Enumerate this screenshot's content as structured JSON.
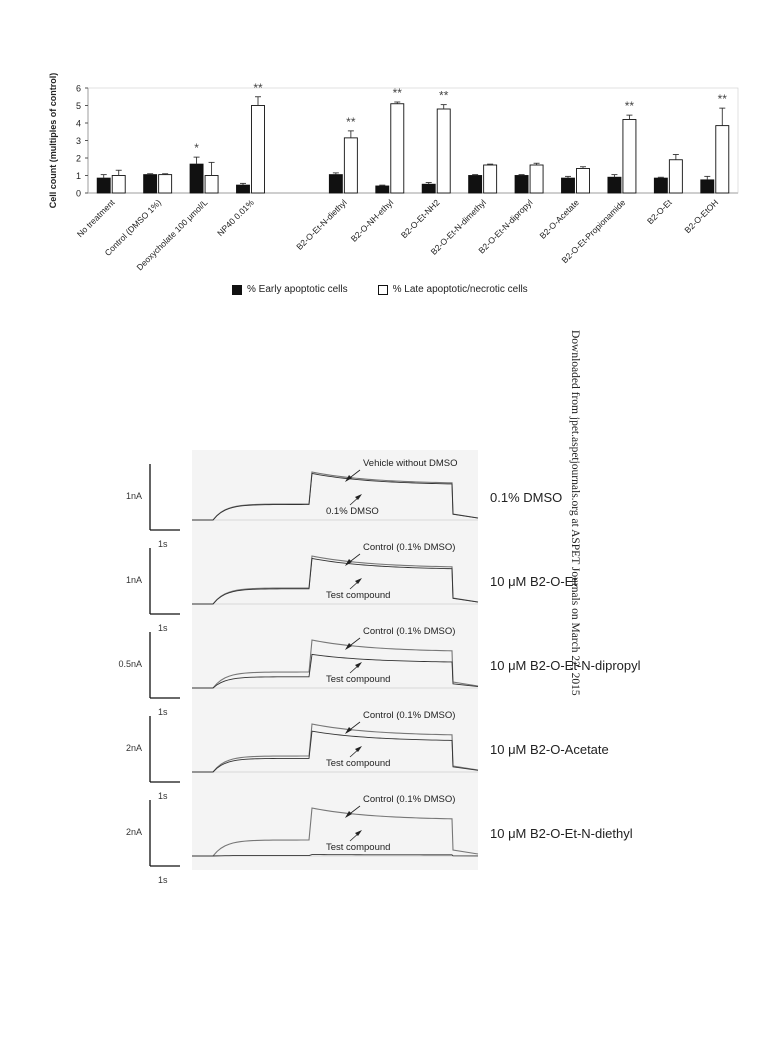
{
  "chart_data": {
    "type": "bar",
    "ylabel": "Cell count (multiples of control)",
    "ylim": [
      0,
      6
    ],
    "yticks": [
      0,
      1,
      2,
      3,
      4,
      5,
      6
    ],
    "grid": false,
    "legend_position": "bottom",
    "categories": [
      "No treatment",
      "Control (DMSO 1%)",
      "Deoxycholate 100 μmol/L",
      "NP40 0.01%",
      "",
      "B2-O-Et-N-diethyl",
      "B2-O-NH-ethyl",
      "B2-O-Et-NH2",
      "B2-O-Et-N-dimethyl",
      "B2-O-Et-N-dipropyl",
      "B2-O-Acetate",
      "B2-O-Et-Propionamide",
      "B2-O-Et",
      "B2-O-EtOH"
    ],
    "series": [
      {
        "name": "% Early apoptotic cells",
        "color": "#111111",
        "values": [
          0.85,
          1.05,
          1.65,
          0.45,
          null,
          1.05,
          0.4,
          0.5,
          1.0,
          1.0,
          0.85,
          0.9,
          0.85,
          0.75
        ],
        "errors": [
          0.2,
          0.05,
          0.4,
          0.1,
          null,
          0.1,
          0.05,
          0.1,
          0.05,
          0.05,
          0.1,
          0.15,
          0.05,
          0.2
        ]
      },
      {
        "name": "% Late apoptotic/necrotic cells",
        "color": "#ffffff",
        "values": [
          1.0,
          1.05,
          1.0,
          5.0,
          null,
          3.15,
          5.1,
          4.8,
          1.6,
          1.6,
          1.4,
          4.2,
          1.9,
          3.85
        ],
        "errors": [
          0.3,
          0.05,
          0.75,
          0.5,
          null,
          0.4,
          0.1,
          0.25,
          0.05,
          0.1,
          0.1,
          0.25,
          0.3,
          1.0
        ]
      }
    ],
    "annotations": [
      {
        "category_index": 2,
        "text": "*"
      },
      {
        "category_index": 3,
        "text": "**"
      },
      {
        "category_index": 5,
        "text": "**"
      },
      {
        "category_index": 6,
        "text": "**"
      },
      {
        "category_index": 7,
        "text": "**"
      },
      {
        "category_index": 11,
        "text": "**"
      },
      {
        "category_index": 13,
        "text": "**"
      }
    ]
  },
  "legend": {
    "early": "% Early apoptotic cells",
    "late": "% Late apoptotic/necrotic cells"
  },
  "traces": {
    "time_scale": "1s",
    "panels": [
      {
        "current_scale": "1nA",
        "condition": "0.1% DMSO",
        "control_label": "Vehicle without DMSO",
        "test_label": "0.1% DMSO",
        "ratio": 0.97
      },
      {
        "current_scale": "1nA",
        "condition": "10 μM B2-O-Et",
        "control_label": "Control (0.1% DMSO)",
        "test_label": "Test compound",
        "ratio": 0.95
      },
      {
        "current_scale": "0.5nA",
        "condition": "10 μM B2-O-Et-N-dipropyl",
        "control_label": "Control (0.1% DMSO)",
        "test_label": "Test compound",
        "ratio": 0.7
      },
      {
        "current_scale": "2nA",
        "condition": "10 μM B2-O-Acetate",
        "control_label": "Control (0.1% DMSO)",
        "test_label": "Test compound",
        "ratio": 0.85
      },
      {
        "current_scale": "2nA",
        "condition": "10 μM B2-O-Et-N-diethyl",
        "control_label": "Control (0.1% DMSO)",
        "test_label": "Test compound",
        "ratio": 0.03
      }
    ]
  },
  "sidebar_text": "Downloaded from jpet.aspetjournals.org at ASPET Journals on March 22, 2015"
}
